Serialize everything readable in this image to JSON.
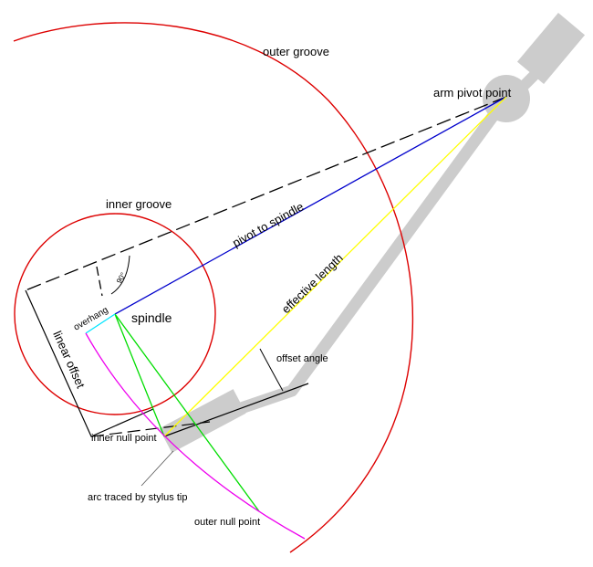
{
  "labels": {
    "outer_groove": "outer groove",
    "arm_pivot_point": "arm pivot point",
    "inner_groove": "inner groove",
    "pivot_to_spindle": "pivot to spindle",
    "effective_length": "effective length",
    "spindle": "spindle",
    "overhang": "overhang",
    "linear_offset": "linear offset",
    "offset_angle": "offset angle",
    "inner_null_point": "inner null point",
    "arc_traced": "arc traced by stylus tip",
    "outer_null_point": "outer null point",
    "right_angle": "90°"
  },
  "colors": {
    "groove": "#dd0000",
    "pivot_to_spindle": "#0000cc",
    "effective_length": "#ffff00",
    "null_lines": "#00dd00",
    "overhang": "#00e5ff",
    "stylus_arc": "#ee00ee",
    "arm": "#cccccc",
    "construction": "#000000"
  }
}
